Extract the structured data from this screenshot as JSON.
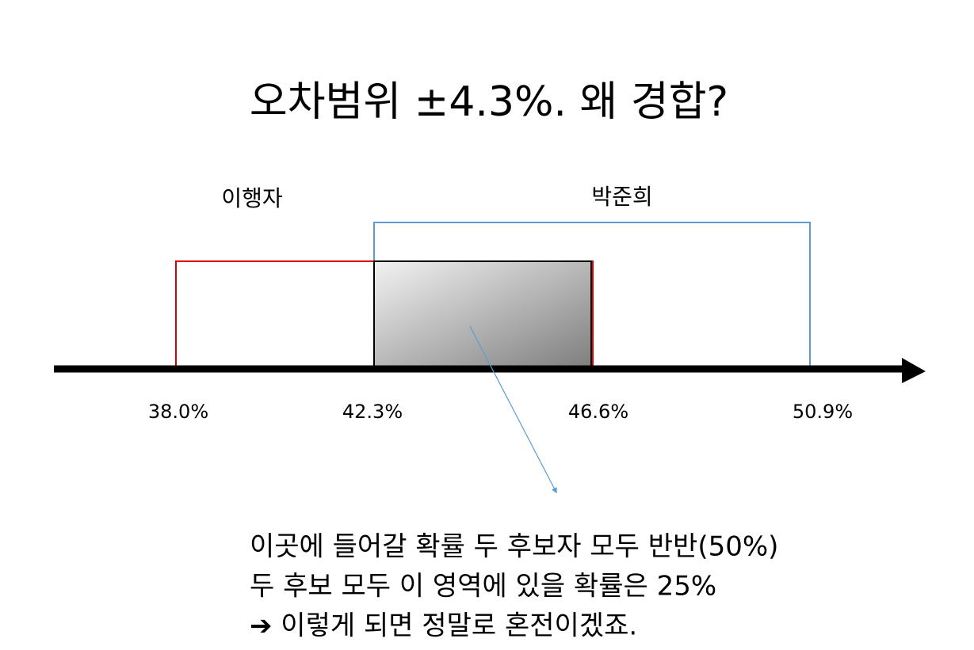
{
  "title": "오차범위 ±4.3%. 왜 경합?",
  "candidates": [
    "이행자",
    "박준희"
  ],
  "axis_labels": [
    "38.0%",
    "42.3%",
    "46.6%",
    "50.9%"
  ],
  "note": {
    "lines": [
      "이곳에 들어갈 확률 두 후보자 모두 반반(50%)",
      "두 후보 모두 이 영역에 있을 확률은 25%",
      "➔ 이렇게 되면 정말로 혼전이겠죠."
    ]
  }
}
